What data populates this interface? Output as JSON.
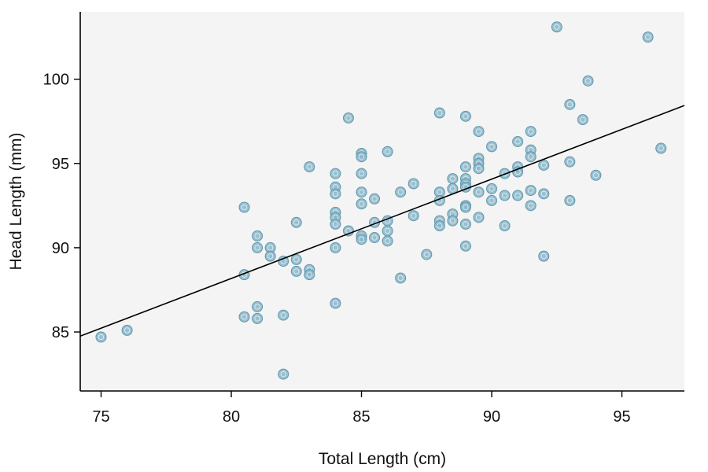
{
  "chart_data": {
    "type": "scatter",
    "title": "",
    "xlabel": "Total Length (cm)",
    "ylabel": "Head Length (mm)",
    "xlim": [
      74.2,
      97.4
    ],
    "ylim": [
      81.5,
      104
    ],
    "xticks": [
      75,
      80,
      85,
      90,
      95
    ],
    "yticks": [
      85,
      90,
      95,
      100
    ],
    "xtick_labels": [
      "75",
      "80",
      "85",
      "90",
      "95"
    ],
    "ytick_labels": [
      "85",
      "90",
      "95",
      "100"
    ],
    "grid": false,
    "legend": "none",
    "colors": {
      "plot_background": "#f4f4f4",
      "point_fill": "#8ab6c9",
      "point_stroke": "#5f97ae",
      "line": "#000000",
      "axis": "#000000"
    },
    "regression_line": {
      "intercept": 41.0,
      "slope": 0.5897
    },
    "series": [
      {
        "x": [
          75,
          76,
          80.5,
          80.5,
          80.5,
          81,
          81,
          81,
          81,
          81.5,
          81.5,
          82,
          82,
          82,
          82.5,
          82.5,
          82.5,
          83,
          83,
          83,
          84,
          84,
          84,
          84,
          84,
          84,
          84,
          84,
          84.5,
          84.5,
          85,
          85,
          85,
          85,
          85,
          85,
          85,
          85.5,
          85.5,
          85.5,
          86,
          86,
          86,
          86,
          86.5,
          86.5,
          87,
          87,
          87.5,
          88,
          88,
          88,
          88,
          88,
          88.5,
          88.5,
          88.5,
          88.5,
          89,
          89,
          89,
          89,
          89,
          89,
          89,
          89,
          89,
          89.5,
          89.5,
          89.5,
          89.5,
          89.5,
          89.5,
          90,
          90,
          90,
          90.5,
          90.5,
          90.5,
          91,
          91,
          91,
          91,
          91.5,
          91.5,
          91.5,
          91.5,
          91.5,
          92,
          92,
          92,
          92.5,
          93,
          93,
          93,
          93.5,
          93.7,
          94,
          96,
          96.5
        ],
        "y": [
          84.7,
          85.1,
          92.4,
          88.4,
          85.9,
          90.7,
          90.0,
          86.5,
          85.8,
          90.0,
          89.5,
          89.2,
          86.0,
          82.5,
          91.5,
          89.3,
          88.6,
          94.8,
          88.7,
          88.4,
          94.4,
          93.6,
          93.2,
          92.1,
          91.8,
          91.4,
          86.7,
          90.0,
          97.7,
          91.0,
          95.6,
          95.4,
          94.4,
          93.3,
          92.6,
          90.7,
          90.5,
          92.9,
          91.5,
          90.6,
          95.7,
          91.6,
          91.0,
          90.4,
          93.3,
          88.2,
          93.8,
          91.9,
          89.6,
          98.0,
          93.3,
          92.8,
          91.6,
          91.3,
          94.1,
          93.5,
          92.0,
          91.6,
          97.8,
          94.8,
          94.1,
          93.8,
          93.6,
          92.5,
          92.4,
          91.4,
          90.1,
          96.9,
          95.3,
          95.0,
          94.7,
          93.3,
          91.8,
          96.0,
          93.5,
          92.8,
          94.4,
          93.1,
          91.3,
          96.3,
          94.8,
          94.5,
          93.1,
          96.9,
          95.8,
          95.4,
          93.4,
          92.5,
          94.9,
          93.2,
          89.5,
          103.1,
          98.5,
          95.1,
          92.8,
          97.6,
          99.9,
          94.3,
          102.5,
          95.9
        ]
      }
    ]
  }
}
